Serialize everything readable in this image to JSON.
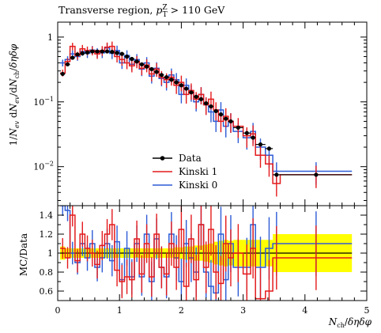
{
  "title": "Transverse region, p_T^Z > 110 GeV",
  "top_ylabel": "1/N_ev dN_ev/dN_ch/dηdφ",
  "ratio_ylabel": "MC/Data",
  "xlabel": "N_ch/δηδφ",
  "colors": {
    "data": "#000000",
    "kinski1": "#e41a1c",
    "kinski0": "#2d5bd6",
    "band": "#ffff00"
  },
  "chart_data": [
    {
      "type": "line",
      "panel": "main",
      "title": "Transverse region, p_T^Z > 110 GeV",
      "xlabel": "N_ch/δηδφ",
      "ylabel": "1/N_ev dN_ev/dN_ch/dηdφ",
      "yscale": "log",
      "xlim": [
        0,
        5
      ],
      "ylim": [
        0.0025,
        1.7
      ],
      "x_ticks": [
        "0",
        "1",
        "2",
        "3",
        "4",
        "5"
      ],
      "y_ticks": [
        "10^-2",
        "10^-1",
        "1"
      ],
      "legend": {
        "position": "lower-center",
        "entries": [
          "Data",
          "Kinski 1",
          "Kinski 0"
        ]
      },
      "bin_edges": [
        0.04,
        0.12,
        0.2,
        0.28,
        0.36,
        0.44,
        0.52,
        0.6,
        0.68,
        0.76,
        0.84,
        0.92,
        1.0,
        1.08,
        1.16,
        1.24,
        1.32,
        1.4,
        1.48,
        1.56,
        1.64,
        1.72,
        1.8,
        1.88,
        1.96,
        2.04,
        2.12,
        2.2,
        2.28,
        2.36,
        2.44,
        2.52,
        2.6,
        2.68,
        2.76,
        2.84,
        3.0,
        3.12,
        3.2,
        3.36,
        3.48,
        3.6,
        4.76
      ],
      "series": [
        {
          "name": "Data",
          "style": "points",
          "values": [
            0.27,
            0.38,
            0.48,
            0.54,
            0.56,
            0.58,
            0.6,
            0.6,
            0.6,
            0.6,
            0.59,
            0.57,
            0.55,
            0.5,
            0.46,
            0.42,
            0.38,
            0.35,
            0.32,
            0.29,
            0.26,
            0.24,
            0.22,
            0.2,
            0.18,
            0.16,
            0.14,
            0.12,
            0.11,
            0.095,
            0.085,
            0.072,
            0.064,
            0.055,
            0.05,
            0.04,
            0.033,
            0.028,
            0.022,
            0.019,
            0.0075,
            0.0075
          ]
        },
        {
          "name": "Kinski 1",
          "style": "step",
          "values": [
            0.28,
            0.42,
            0.72,
            0.52,
            0.66,
            0.62,
            0.62,
            0.55,
            0.62,
            0.7,
            0.72,
            0.5,
            0.45,
            0.4,
            0.36,
            0.42,
            0.33,
            0.37,
            0.27,
            0.32,
            0.24,
            0.22,
            0.24,
            0.18,
            0.2,
            0.13,
            0.15,
            0.11,
            0.13,
            0.09,
            0.11,
            0.075,
            0.05,
            0.06,
            0.05,
            0.042,
            0.03,
            0.032,
            0.015,
            0.011,
            0.0055,
            0.0075
          ]
        },
        {
          "name": "Kinski 0",
          "style": "step",
          "values": [
            0.4,
            0.45,
            0.55,
            0.5,
            0.6,
            0.56,
            0.63,
            0.58,
            0.57,
            0.68,
            0.56,
            0.62,
            0.4,
            0.52,
            0.38,
            0.45,
            0.32,
            0.4,
            0.25,
            0.33,
            0.23,
            0.2,
            0.26,
            0.22,
            0.13,
            0.18,
            0.14,
            0.1,
            0.13,
            0.09,
            0.07,
            0.05,
            0.075,
            0.042,
            0.05,
            0.035,
            0.028,
            0.035,
            0.02,
            0.015,
            0.0085,
            0.0085
          ]
        }
      ]
    },
    {
      "type": "line",
      "panel": "ratio",
      "xlabel": "N_ch/δηδφ",
      "ylabel": "MC/Data",
      "xlim": [
        0,
        5
      ],
      "ylim": [
        0.5,
        1.5
      ],
      "x_ticks": [
        "0",
        "1",
        "2",
        "3",
        "4",
        "5"
      ],
      "y_ticks": [
        "0.6",
        "0.8",
        "1",
        "1.2",
        "1.4"
      ],
      "band": {
        "lower": [
          0.93,
          0.95,
          0.95,
          0.95,
          0.95,
          0.95,
          0.95,
          0.95,
          0.95,
          0.95,
          0.95,
          0.95,
          0.95,
          0.95,
          0.95,
          0.95,
          0.95,
          0.95,
          0.95,
          0.95,
          0.95,
          0.95,
          0.95,
          0.94,
          0.94,
          0.93,
          0.93,
          0.92,
          0.92,
          0.91,
          0.9,
          0.88,
          0.87,
          0.86,
          0.87,
          0.86,
          0.86,
          0.86,
          0.86,
          0.86,
          0.8,
          0.8
        ],
        "upper": [
          1.07,
          1.05,
          1.05,
          1.05,
          1.05,
          1.05,
          1.05,
          1.05,
          1.05,
          1.05,
          1.05,
          1.05,
          1.05,
          1.05,
          1.05,
          1.05,
          1.05,
          1.05,
          1.05,
          1.05,
          1.05,
          1.05,
          1.05,
          1.06,
          1.06,
          1.07,
          1.07,
          1.08,
          1.08,
          1.09,
          1.1,
          1.12,
          1.13,
          1.14,
          1.13,
          1.14,
          1.14,
          1.14,
          1.14,
          1.14,
          1.2,
          1.2
        ]
      },
      "series": [
        {
          "name": "Kinski 1",
          "values": [
            1.05,
            0.95,
            1.4,
            0.92,
            1.2,
            1.05,
            1.0,
            0.88,
            1.08,
            1.2,
            1.3,
            0.82,
            0.7,
            0.75,
            0.72,
            1.15,
            0.78,
            1.1,
            0.75,
            1.2,
            0.85,
            0.78,
            1.1,
            0.85,
            1.25,
            0.65,
            1.15,
            0.72,
            1.3,
            0.85,
            1.25,
            0.8,
            0.68,
            1.1,
            0.95,
            1.0,
            0.78,
            1.05,
            0.52,
            0.6,
            0.95,
            0.95
          ]
        },
        {
          "name": "Kinski 0",
          "values": [
            1.5,
            1.45,
            1.0,
            0.9,
            1.1,
            0.95,
            1.1,
            0.85,
            0.95,
            1.1,
            0.92,
            1.12,
            0.72,
            1.05,
            0.75,
            1.1,
            0.75,
            1.2,
            0.7,
            1.15,
            0.85,
            0.75,
            1.2,
            0.95,
            0.7,
            1.1,
            0.95,
            0.8,
            1.3,
            0.8,
            0.65,
            0.58,
            1.2,
            0.72,
            1.1,
            0.85,
            0.85,
            1.3,
            0.85,
            1.05,
            1.1,
            1.1
          ]
        }
      ]
    }
  ]
}
